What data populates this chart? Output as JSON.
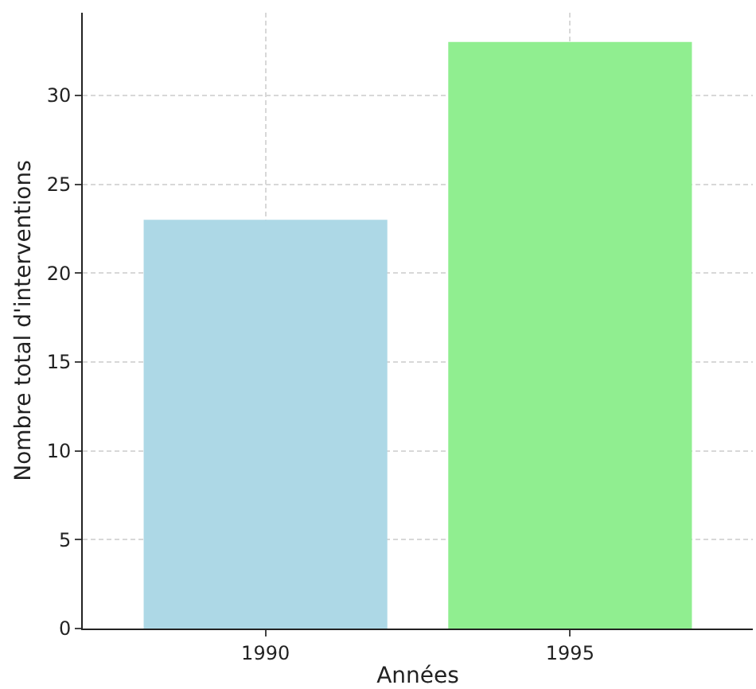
{
  "chart_data": {
    "type": "bar",
    "xlabel": "Années",
    "ylabel": "Nombre total d'interventions",
    "categories": [
      "1990",
      "1995"
    ],
    "values": [
      23,
      33
    ],
    "colors": [
      "#add8e6",
      "#90ee90"
    ],
    "ylim": [
      0,
      34.65
    ],
    "yticks": [
      0,
      5,
      10,
      15,
      20,
      25,
      30
    ],
    "grid": true
  }
}
